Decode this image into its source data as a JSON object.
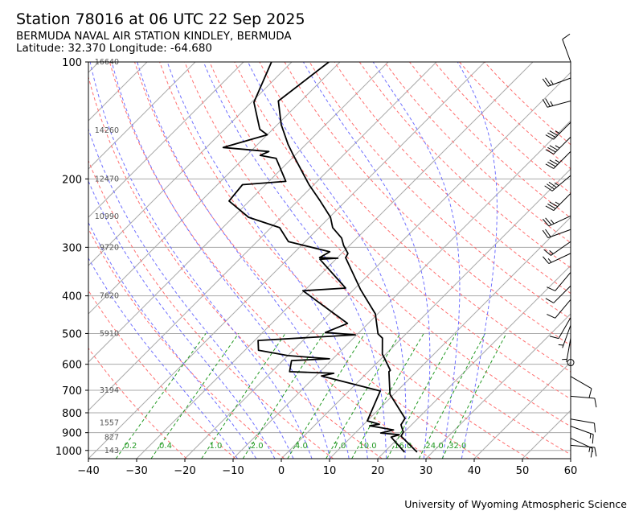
{
  "header": {
    "title": "Station 78016 at 06 UTC 22 Sep 2025",
    "station_name": "BERMUDA NAVAL AIR STATION KINDLEY, BERMUDA",
    "location": "Latitude: 32.370 Longitude: -64.680"
  },
  "footer": {
    "credit": "University of Wyoming Atmospheric Science"
  },
  "colors": {
    "temperature": "#000000",
    "dewpoint": "#000000",
    "isotherm": "#aaaaaa",
    "dry_adiabat": "#ff7070",
    "moist_adiabat": "#7070ff",
    "mixing_ratio": "#229922",
    "height_label": "#555555"
  },
  "chart_data": {
    "type": "line",
    "subtype": "skew-t log-p",
    "xlabel": "",
    "ylabel": "",
    "xlim": [
      -40,
      60
    ],
    "ylim": [
      1050,
      100
    ],
    "grid": true,
    "x_ticks": [
      "−40",
      "−30",
      "−20",
      "−10",
      "0",
      "10",
      "20",
      "30",
      "40",
      "50",
      "60"
    ],
    "x_tick_values": [
      -40,
      -30,
      -20,
      -10,
      0,
      10,
      20,
      30,
      40,
      50,
      60
    ],
    "y_ticks": [
      "100",
      "200",
      "300",
      "400",
      "500",
      "600",
      "700",
      "800",
      "900",
      "1000"
    ],
    "y_tick_values": [
      100,
      200,
      300,
      400,
      500,
      600,
      700,
      800,
      900,
      1000
    ],
    "height_labels": [
      {
        "p": 100,
        "label": "16640"
      },
      {
        "p": 150,
        "label": "14260"
      },
      {
        "p": 200,
        "label": "12470"
      },
      {
        "p": 250,
        "label": "10990"
      },
      {
        "p": 300,
        "label": "9720"
      },
      {
        "p": 400,
        "label": "7620"
      },
      {
        "p": 500,
        "label": "5910"
      },
      {
        "p": 700,
        "label": "3194"
      },
      {
        "p": 850,
        "label": "1557"
      },
      {
        "p": 925,
        "label": "827"
      },
      {
        "p": 1000,
        "label": "143"
      }
    ],
    "mixing_ratio_labels": [
      "0.2",
      "0.4",
      "1.0",
      "2.0",
      "4.0",
      "7.0",
      "10.0",
      "16.0",
      "24.0",
      "32.0"
    ],
    "mixing_ratio_values": [
      0.2,
      0.4,
      1.0,
      2.0,
      4.0,
      7.0,
      10.0,
      16.0,
      24.0,
      32.0
    ],
    "dry_adiabats_K": [
      250,
      260,
      270,
      280,
      290,
      300,
      310,
      320,
      330,
      340,
      350,
      360,
      370,
      380,
      390,
      400,
      410,
      420,
      430,
      440,
      450
    ],
    "moist_adiabats_C_at_1000": [
      -12,
      -8,
      -4,
      0,
      4,
      8,
      12,
      16,
      20,
      24,
      28,
      32,
      36
    ],
    "series": [
      {
        "name": "Temperature",
        "points": [
          [
            1010,
            26.8
          ],
          [
            919,
            20.2
          ],
          [
            897,
            19.8
          ],
          [
            859,
            17.8
          ],
          [
            827,
            17.3
          ],
          [
            717,
            9.2
          ],
          [
            627,
            4.3
          ],
          [
            622,
            4.3
          ],
          [
            578,
            0.5
          ],
          [
            565,
            -0.7
          ],
          [
            514,
            -4.0
          ],
          [
            501,
            -5.8
          ],
          [
            445,
            -10.5
          ],
          [
            386,
            -18.5
          ],
          [
            319,
            -28.3
          ],
          [
            311,
            -28.7
          ],
          [
            297,
            -31.2
          ],
          [
            284,
            -33.2
          ],
          [
            267,
            -37.2
          ],
          [
            251,
            -39.8
          ],
          [
            228,
            -45.3
          ],
          [
            207,
            -51.0
          ],
          [
            174,
            -60.3
          ],
          [
            163,
            -63.7
          ],
          [
            145,
            -69.2
          ],
          [
            126,
            -74.7
          ],
          [
            100,
            -72.3
          ]
        ]
      },
      {
        "name": "Dewpoint",
        "points": [
          [
            1010,
            24.2
          ],
          [
            924,
            18.3
          ],
          [
            911,
            19.5
          ],
          [
            902,
            15.3
          ],
          [
            885,
            17.3
          ],
          [
            864,
            11.5
          ],
          [
            856,
            13.2
          ],
          [
            839,
            10.0
          ],
          [
            703,
            6.5
          ],
          [
            643,
            -8.8
          ],
          [
            633,
            -6.8
          ],
          [
            627,
            -16.3
          ],
          [
            587,
            -18.2
          ],
          [
            581,
            -10.7
          ],
          [
            570,
            -20.0
          ],
          [
            552,
            -27.2
          ],
          [
            521,
            -29.3
          ],
          [
            504,
            -10.3
          ],
          [
            497,
            -17.0
          ],
          [
            471,
            -14.3
          ],
          [
            388,
            -30.3
          ],
          [
            382,
            -22.0
          ],
          [
            322,
            -33.3
          ],
          [
            320,
            -29.8
          ],
          [
            319,
            -33.7
          ],
          [
            308,
            -32.8
          ],
          [
            290,
            -43.5
          ],
          [
            267,
            -48.2
          ],
          [
            251,
            -56.8
          ],
          [
            228,
            -64.2
          ],
          [
            207,
            -64.8
          ],
          [
            203,
            -56.5
          ],
          [
            177,
            -63.3
          ],
          [
            174,
            -67.2
          ],
          [
            170,
            -66.2
          ],
          [
            166,
            -76.5
          ],
          [
            154,
            -70.0
          ],
          [
            149,
            -72.7
          ],
          [
            127,
            -79.5
          ],
          [
            100,
            -84.2
          ]
        ]
      }
    ],
    "wind_barbs": [
      {
        "p": 100,
        "dir": 340,
        "kt": 10
      },
      {
        "p": 110,
        "dir": 250,
        "kt": 25
      },
      {
        "p": 126,
        "dir": 255,
        "kt": 25
      },
      {
        "p": 143,
        "dir": 225,
        "kt": 35
      },
      {
        "p": 156,
        "dir": 225,
        "kt": 35
      },
      {
        "p": 170,
        "dir": 225,
        "kt": 35
      },
      {
        "p": 196,
        "dir": 230,
        "kt": 35
      },
      {
        "p": 218,
        "dir": 225,
        "kt": 35
      },
      {
        "p": 249,
        "dir": 245,
        "kt": 25
      },
      {
        "p": 270,
        "dir": 250,
        "kt": 20
      },
      {
        "p": 290,
        "dir": 235,
        "kt": 15
      },
      {
        "p": 311,
        "dir": 245,
        "kt": 15
      },
      {
        "p": 348,
        "dir": 220,
        "kt": 10
      },
      {
        "p": 377,
        "dir": 225,
        "kt": 10
      },
      {
        "p": 409,
        "dir": 220,
        "kt": 10
      },
      {
        "p": 455,
        "dir": 210,
        "kt": 10
      },
      {
        "p": 476,
        "dir": 200,
        "kt": 5
      },
      {
        "p": 514,
        "dir": 190,
        "kt": 5
      },
      {
        "p": 594,
        "dir": 0,
        "kt": 0
      },
      {
        "p": 645,
        "dir": 120,
        "kt": 10
      },
      {
        "p": 725,
        "dir": 95,
        "kt": 10
      },
      {
        "p": 830,
        "dir": 100,
        "kt": 10
      },
      {
        "p": 866,
        "dir": 110,
        "kt": 15
      },
      {
        "p": 930,
        "dir": 115,
        "kt": 15
      },
      {
        "p": 970,
        "dir": 95,
        "kt": 15
      }
    ]
  }
}
